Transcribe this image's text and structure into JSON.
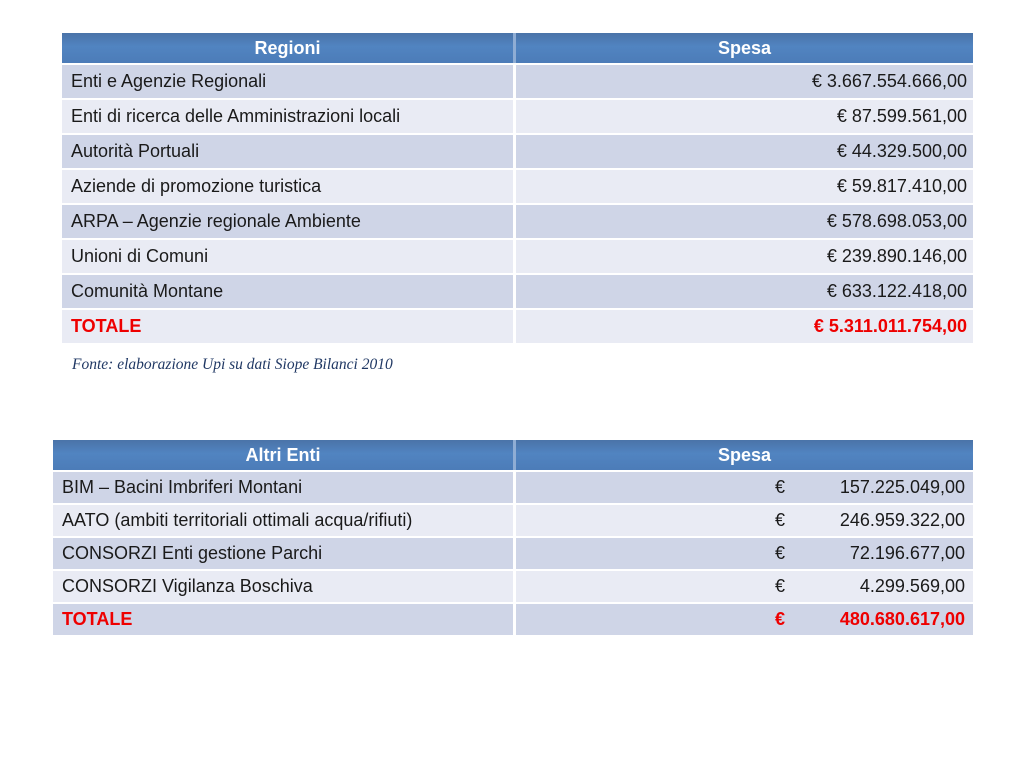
{
  "slide": {
    "background": "#ffffff"
  },
  "colors": {
    "header_bg": "#4f81bd",
    "header_divider": "#8fadd4",
    "row_dark": "#cfd5e7",
    "row_light": "#e9ebf4",
    "body_text": "#1a1a1a",
    "header_text": "#ffffff",
    "total_text": "#ee0000",
    "footnote_text": "#203864"
  },
  "table_regioni": {
    "headers": {
      "category": "Regioni",
      "amount": "Spesa"
    },
    "rows": [
      {
        "label": "Enti e Agenzie Regionali",
        "value": "€ 3.667.554.666,00"
      },
      {
        "label": "Enti di ricerca delle Amministrazioni locali",
        "value": "€ 87.599.561,00"
      },
      {
        "label": "Autorità Portuali",
        "value": "€ 44.329.500,00"
      },
      {
        "label": "Aziende di promozione turistica",
        "value": "€ 59.817.410,00"
      },
      {
        "label": "ARPA – Agenzie regionale Ambiente",
        "value": "€ 578.698.053,00"
      },
      {
        "label": "Unioni di Comuni",
        "value": "€ 239.890.146,00"
      },
      {
        "label": "Comunità Montane",
        "value": "€ 633.122.418,00"
      }
    ],
    "total": {
      "label": "TOTALE",
      "value": "€ 5.311.011.754,00"
    },
    "footnote": "Fonte: elaborazione Upi su dati Siope Bilanci 2010"
  },
  "table_altri_enti": {
    "headers": {
      "category": "Altri Enti",
      "amount": "Spesa"
    },
    "rows": [
      {
        "label": "BIM – Bacini Imbriferi Montani",
        "currency": "€",
        "value": "157.225.049,00"
      },
      {
        "label": "AATO (ambiti territoriali ottimali acqua/rifiuti)",
        "currency": "€",
        "value": "246.959.322,00"
      },
      {
        "label": "CONSORZI Enti gestione Parchi",
        "currency": "€",
        "value": "72.196.677,00"
      },
      {
        "label": "CONSORZI Vigilanza Boschiva",
        "currency": "€",
        "value": "4.299.569,00"
      }
    ],
    "total": {
      "label": "TOTALE",
      "currency": "€",
      "value": "480.680.617,00"
    }
  }
}
